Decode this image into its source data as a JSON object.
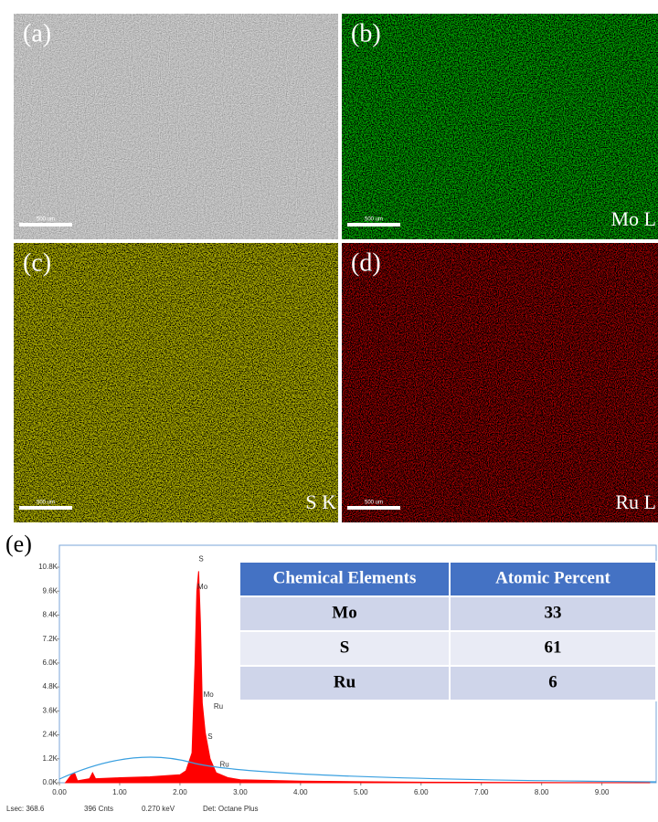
{
  "panels": [
    {
      "label": "(a)",
      "scale_bar": "500 um"
    },
    {
      "label": "(b)",
      "scale_bar": "500 um",
      "element": "Mo L"
    },
    {
      "label": "(c)",
      "scale_bar": "500 um",
      "element": "S K"
    },
    {
      "label": "(d)",
      "scale_bar": "500 um",
      "element": "Ru L"
    }
  ],
  "chart_data": {
    "type": "area",
    "panel_label": "(e)",
    "color": "#ff0000",
    "x": [
      0.1,
      0.2,
      0.25,
      0.3,
      0.5,
      0.55,
      0.6,
      1.0,
      1.5,
      2.0,
      2.1,
      2.2,
      2.25,
      2.28,
      2.31,
      2.34,
      2.37,
      2.42,
      2.5,
      2.6,
      2.8,
      3.0,
      4.0,
      5.0,
      6.0,
      7.0,
      8.0,
      9.0,
      9.8
    ],
    "values": [
      0,
      400,
      500,
      100,
      200,
      500,
      200,
      250,
      300,
      400,
      600,
      1500,
      6000,
      9600,
      10600,
      8000,
      4000,
      2500,
      1200,
      500,
      250,
      150,
      80,
      50,
      30,
      20,
      10,
      5,
      0
    ],
    "xlim": [
      0,
      9.9
    ],
    "ylim": [
      0,
      11900
    ],
    "xticks": [
      {
        "value": 0,
        "label": "0.00"
      },
      {
        "value": 1,
        "label": "1.00"
      },
      {
        "value": 2,
        "label": "2.00"
      },
      {
        "value": 3,
        "label": "3.00"
      },
      {
        "value": 4,
        "label": "4.00"
      },
      {
        "value": 5,
        "label": "5.00"
      },
      {
        "value": 6,
        "label": "6.00"
      },
      {
        "value": 7,
        "label": "7.00"
      },
      {
        "value": 8,
        "label": "8.00"
      },
      {
        "value": 9,
        "label": "9.00"
      }
    ],
    "yticks": [
      {
        "value": 0,
        "label": "0.0K"
      },
      {
        "value": 1200,
        "label": "1.2K"
      },
      {
        "value": 2400,
        "label": "2.4K"
      },
      {
        "value": 3600,
        "label": "3.6K"
      },
      {
        "value": 4800,
        "label": "4.8K"
      },
      {
        "value": 6000,
        "label": "6.0K"
      },
      {
        "value": 7200,
        "label": "7.2K"
      },
      {
        "value": 8400,
        "label": "8.4K"
      },
      {
        "value": 9600,
        "label": "9.6K"
      },
      {
        "value": 10800,
        "label": "10.8K"
      }
    ],
    "annotations": [
      {
        "text": "S",
        "x": 2.31,
        "y": 11200
      },
      {
        "text": "Mo",
        "x": 2.29,
        "y": 9800
      },
      {
        "text": "Mo",
        "x": 2.39,
        "y": 4400
      },
      {
        "text": "Ru",
        "x": 2.56,
        "y": 3800
      },
      {
        "text": "S",
        "x": 2.46,
        "y": 2300
      },
      {
        "text": "Ru",
        "x": 2.66,
        "y": 900
      }
    ],
    "footer": [
      "Lsec: 368.6",
      "396 Cnts",
      "0.270 keV",
      "Det: Octane Plus"
    ]
  },
  "table": {
    "header": [
      "Chemical Elements",
      "Atomic Percent"
    ],
    "rows": [
      [
        "Mo",
        "33"
      ],
      [
        "S",
        "61"
      ],
      [
        "Ru",
        "6"
      ]
    ]
  }
}
